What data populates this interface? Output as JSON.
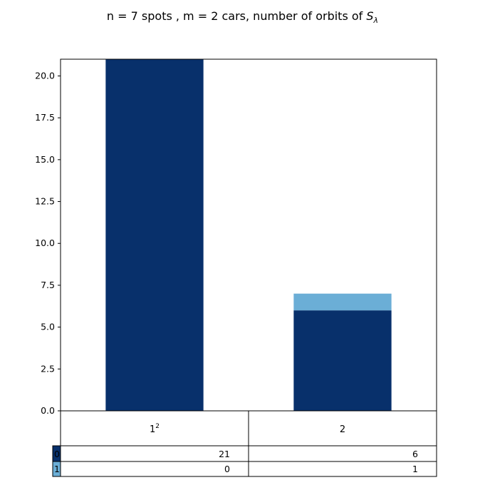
{
  "chart_data": {
    "type": "bar",
    "stacked": true,
    "title": "n = 7 spots , m = 2 cars, number of orbits of S_λ",
    "title_parts": {
      "prefix": "n = 7 spots , m = 2 cars, number of orbits of ",
      "symbol": "S",
      "subscript": "λ"
    },
    "categories": [
      {
        "base": "1",
        "sup": "2"
      },
      {
        "base": "2",
        "sup": ""
      }
    ],
    "series": [
      {
        "name": "0",
        "values": [
          21,
          6
        ],
        "color": "#08306b"
      },
      {
        "name": "1",
        "values": [
          0,
          1
        ],
        "color": "#6baed6"
      }
    ],
    "ylim": [
      0,
      21
    ],
    "yticks": [
      "0.0",
      "2.5",
      "5.0",
      "7.5",
      "10.0",
      "12.5",
      "15.0",
      "17.5",
      "20.0"
    ],
    "table": {
      "row_labels": [
        "0",
        "1"
      ],
      "cells": [
        [
          "21",
          "6"
        ],
        [
          "0",
          "1"
        ]
      ]
    },
    "grid": false
  }
}
